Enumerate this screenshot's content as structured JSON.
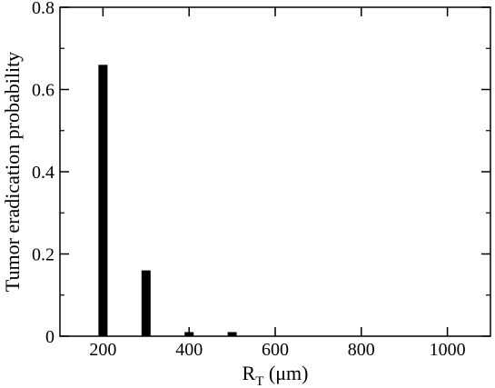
{
  "chart_data": {
    "type": "bar",
    "title": "",
    "xlabel": "R",
    "xlabel_subscript": "T",
    "xlabel_unit": " (μm)",
    "ylabel": "Tumor eradication probability",
    "xlim": [
      100,
      1100
    ],
    "ylim": [
      0,
      0.8
    ],
    "xticks": [
      200,
      400,
      600,
      800,
      1000
    ],
    "yticks": [
      0,
      0.2,
      0.4,
      0.6,
      0.8
    ],
    "xtick_labels": [
      "200",
      "400",
      "600",
      "800",
      "1000"
    ],
    "ytick_labels": [
      "0",
      "0.2",
      "0.4",
      "0.6",
      "0.8"
    ],
    "grid": false,
    "bar_color": "#000000",
    "series": [
      {
        "x": [
          200,
          300,
          400,
          500
        ],
        "values": [
          0.66,
          0.16,
          0.01,
          0.01
        ]
      }
    ]
  }
}
